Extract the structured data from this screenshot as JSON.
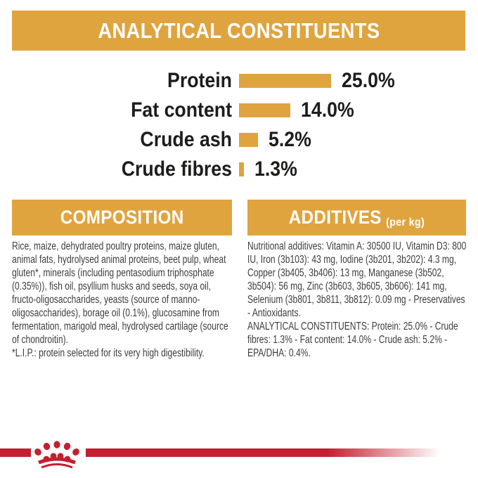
{
  "colors": {
    "gold": "#dfa43e",
    "red": "#c31f30",
    "banner_text": "#ffffff",
    "chart_text": "#1d1d1b",
    "body_text": "#3e3e3d"
  },
  "header": {
    "title": "ANALYTICAL CONSTITUENTS"
  },
  "chart_data": {
    "type": "bar",
    "orientation": "horizontal",
    "title": "ANALYTICAL CONSTITUENTS",
    "categories": [
      "Protein",
      "Fat content",
      "Crude ash",
      "Crude fibres"
    ],
    "values": [
      25.0,
      14.0,
      5.2,
      1.3
    ],
    "value_labels": [
      "25.0%",
      "14.0%",
      "5.2%",
      "1.3%"
    ],
    "unit": "%",
    "xlim": [
      0,
      25
    ],
    "grid": false,
    "legend": false,
    "bar_color": "#dfa43e"
  },
  "composition": {
    "heading": "COMPOSITION",
    "body": "Rice, maize, dehydrated poultry proteins, maize gluten, animal fats, hydrolysed animal proteins, beet pulp, wheat gluten*, minerals (including pentasodium triphosphate (0.35%)), fish oil, psyllium husks and seeds, soya oil, fructo-oligosaccharides, yeasts (source of manno-oligosaccharides), borage oil (0.1%), glucosamine from fermentation, marigold meal, hydrolysed cartilage (source of chondroitin).",
    "footnote": "*L.I.P.: protein selected for its very high digestibility."
  },
  "additives": {
    "heading": "ADDITIVES",
    "heading_suffix": "(per kg)",
    "body": "Nutritional additives: Vitamin A: 30500 IU, Vitamin D3: 800 IU, Iron (3b103): 43 mg, Iodine (3b201, 3b202): 4.3 mg, Copper (3b405, 3b406): 13 mg, Manganese (3b502, 3b504): 56 mg, Zinc (3b603, 3b605, 3b606): 141 mg, Selenium (3b801, 3b811, 3b812): 0.09 mg - Preservatives - Antioxidants.",
    "analytical_line": "ANALYTICAL CONSTITUENTS: Protein: 25.0% - Crude fibres: 1.3% - Fat content: 14.0% - Crude ash: 5.2% - EPA/DHA: 0.4%."
  },
  "footer": {
    "logo": "royal-canin-crown-logo"
  }
}
